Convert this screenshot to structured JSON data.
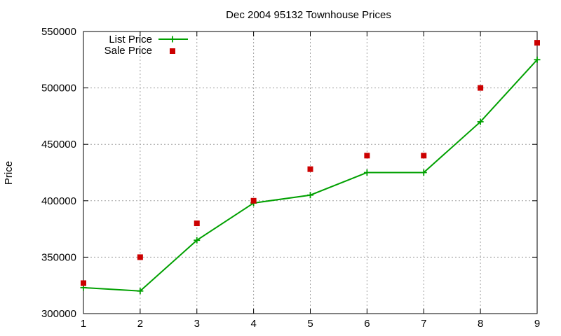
{
  "chart_data": {
    "type": "line",
    "title": "Dec 2004 95132 Townhouse Prices",
    "xlabel": "",
    "ylabel": "Price",
    "xlim": [
      1,
      9
    ],
    "ylim": [
      300000,
      550000
    ],
    "x": [
      1,
      2,
      3,
      4,
      5,
      6,
      7,
      8,
      9
    ],
    "x_ticks": [
      "1",
      "2",
      "3",
      "4",
      "5",
      "6",
      "7",
      "8",
      "9"
    ],
    "y_ticks": [
      "300000",
      "350000",
      "400000",
      "450000",
      "500000",
      "550000"
    ],
    "grid": true,
    "legend_position": "top-left",
    "series": [
      {
        "name": "List Price",
        "style": "line+points",
        "color": "#00a000",
        "values": [
          323000,
          320000,
          365000,
          398000,
          405000,
          425000,
          425000,
          470000,
          525000
        ]
      },
      {
        "name": "Sale Price",
        "style": "points",
        "color": "#cc0000",
        "values": [
          327000,
          350000,
          380000,
          400000,
          428000,
          440000,
          440000,
          500000,
          540000
        ]
      }
    ]
  }
}
